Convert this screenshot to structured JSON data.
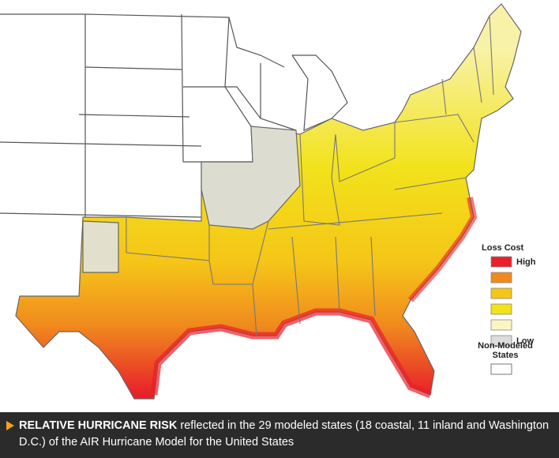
{
  "legend": {
    "title": "Loss Cost",
    "items": [
      {
        "label": "High",
        "color": "#e8202a"
      },
      {
        "color": "#f08a1e"
      },
      {
        "color": "#f5c518"
      },
      {
        "color": "#f2e21a"
      },
      {
        "color": "#fbf5c4"
      },
      {
        "label": "Low",
        "color": "#dcdcdc"
      }
    ],
    "non_modeled": {
      "label": "Non-Modeled States",
      "color": "#ffffff"
    }
  },
  "caption": {
    "lead": "RELATIVE HURRICANE RISK",
    "text": "reflected in the 29 modeled states (18 coastal, 11 inland and Washington D.C.) of the AIR Hurricane Model for the United States"
  }
}
